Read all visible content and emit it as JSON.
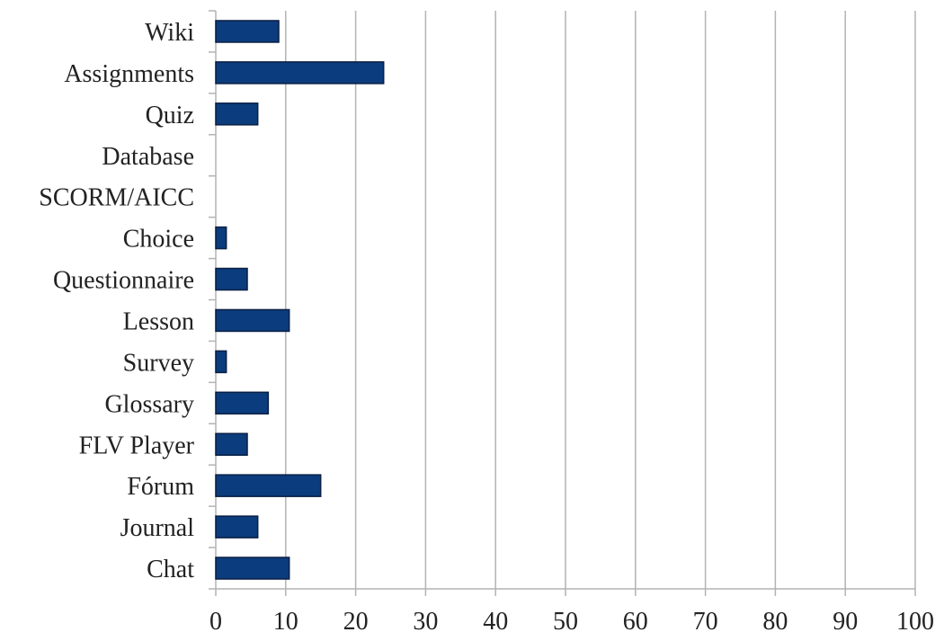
{
  "chart_data": {
    "type": "bar",
    "orientation": "horizontal",
    "title": "",
    "xlabel": "",
    "ylabel": "",
    "categories": [
      "Wiki",
      "Assignments",
      "Quiz",
      "Database",
      "SCORM/AICC",
      "Choice",
      "Questionnaire",
      "Lesson",
      "Survey",
      "Glossary",
      "FLV Player",
      "Fórum",
      "Journal",
      "Chat"
    ],
    "values": [
      9,
      24,
      6,
      0,
      0,
      1.5,
      4.5,
      10.5,
      1.5,
      7.5,
      4.5,
      15,
      6,
      10.5
    ],
    "xlim": [
      0,
      100
    ],
    "xticks": [
      "0",
      "10",
      "20",
      "30",
      "40",
      "50",
      "60",
      "70",
      "80",
      "90",
      "100"
    ],
    "grid": "vertical",
    "legend": "none",
    "bar_color": "#0b3c7d",
    "bar_edge_color": "#0a1f44",
    "grid_color": "#b3b3b3"
  }
}
